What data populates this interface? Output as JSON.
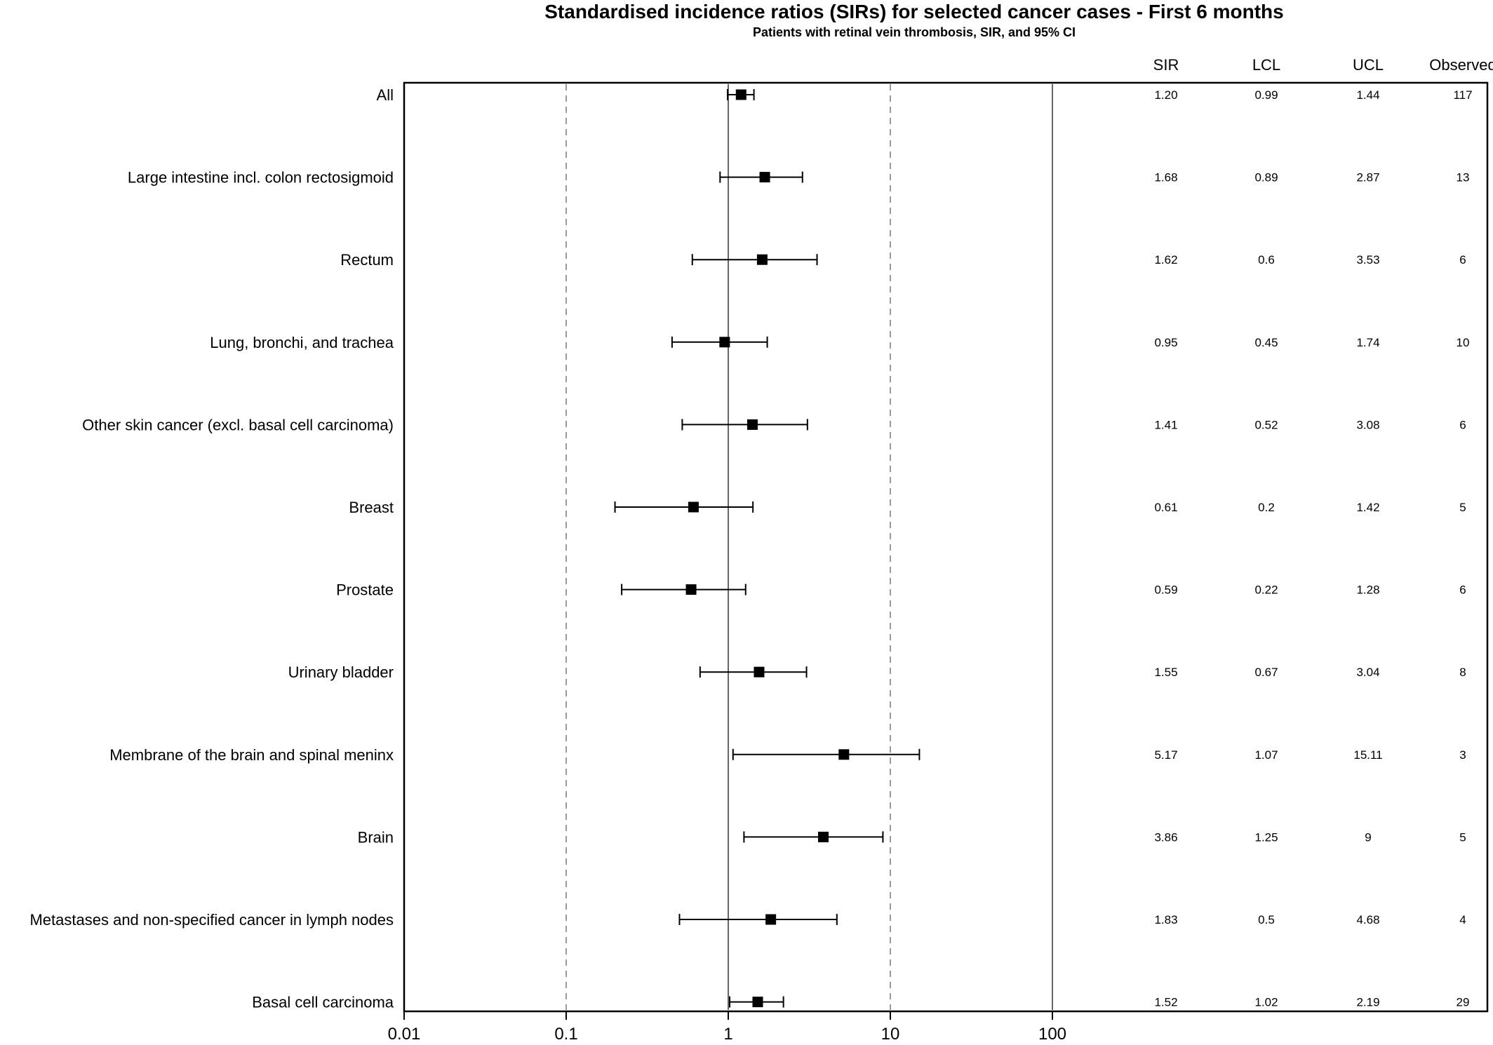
{
  "chart_data": {
    "type": "forest",
    "title": "Standardised incidence ratios (SIRs) for selected cancer cases - First 6 months",
    "subtitle": "Patients with retinal vein thrombosis, SIR, and 95% CI",
    "x_scale": "log",
    "xlim": [
      0.01,
      100
    ],
    "x_ticks": [
      "0.01",
      "0.1",
      "1",
      "10",
      "100"
    ],
    "reference_lines": {
      "solid": [
        1,
        100
      ],
      "dashed": [
        0.1,
        10
      ]
    },
    "columns": [
      "SIR",
      "LCL",
      "UCL",
      "Observed"
    ],
    "rows": [
      {
        "label": "All",
        "sir": "1.20",
        "lcl": "0.99",
        "ucl": "1.44",
        "observed": "117"
      },
      {
        "label": "Large intestine incl. colon rectosigmoid",
        "sir": "1.68",
        "lcl": "0.89",
        "ucl": "2.87",
        "observed": "13"
      },
      {
        "label": "Rectum",
        "sir": "1.62",
        "lcl": "0.6",
        "ucl": "3.53",
        "observed": "6"
      },
      {
        "label": "Lung, bronchi, and trachea",
        "sir": "0.95",
        "lcl": "0.45",
        "ucl": "1.74",
        "observed": "10"
      },
      {
        "label": "Other skin cancer (excl. basal cell carcinoma)",
        "sir": "1.41",
        "lcl": "0.52",
        "ucl": "3.08",
        "observed": "6"
      },
      {
        "label": "Breast",
        "sir": "0.61",
        "lcl": "0.2",
        "ucl": "1.42",
        "observed": "5"
      },
      {
        "label": "Prostate",
        "sir": "0.59",
        "lcl": "0.22",
        "ucl": "1.28",
        "observed": "6"
      },
      {
        "label": "Urinary bladder",
        "sir": "1.55",
        "lcl": "0.67",
        "ucl": "3.04",
        "observed": "8"
      },
      {
        "label": "Membrane of the brain and spinal meninx",
        "sir": "5.17",
        "lcl": "1.07",
        "ucl": "15.11",
        "observed": "3"
      },
      {
        "label": "Brain",
        "sir": "3.86",
        "lcl": "1.25",
        "ucl": "9",
        "observed": "5"
      },
      {
        "label": "Metastases and non-specified cancer in lymph nodes",
        "sir": "1.83",
        "lcl": "0.5",
        "ucl": "4.68",
        "observed": "4"
      },
      {
        "label": "Basal cell carcinoma",
        "sir": "1.52",
        "lcl": "1.02",
        "ucl": "2.19",
        "observed": "29"
      }
    ]
  }
}
